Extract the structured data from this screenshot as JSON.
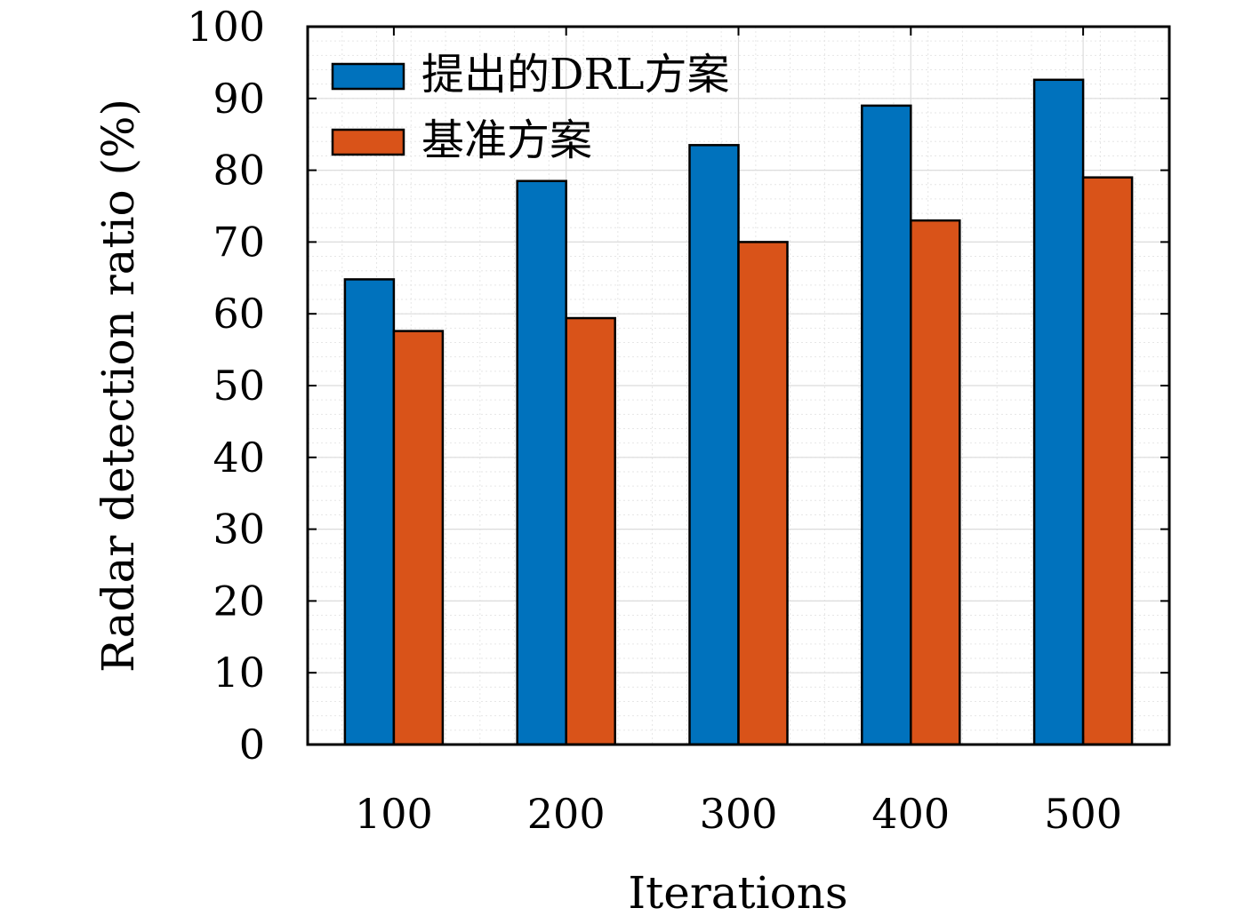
{
  "chart_data": {
    "type": "bar",
    "title": "",
    "xlabel": "Iterations",
    "ylabel": "Radar detection ratio (%)",
    "categories": [
      "100",
      "200",
      "300",
      "400",
      "500"
    ],
    "series": [
      {
        "name": "提出的DRL方案",
        "color": "#0072bd",
        "values": [
          64.8,
          78.5,
          83.5,
          89.0,
          92.6
        ]
      },
      {
        "name": "基准方案",
        "color": "#d95319",
        "values": [
          57.6,
          59.4,
          70.0,
          73.0,
          79.0
        ]
      }
    ],
    "ylim": [
      0,
      100
    ],
    "yticks": [
      0,
      10,
      20,
      30,
      40,
      50,
      60,
      70,
      80,
      90,
      100
    ],
    "grid": true,
    "legend_position": "top-left"
  }
}
